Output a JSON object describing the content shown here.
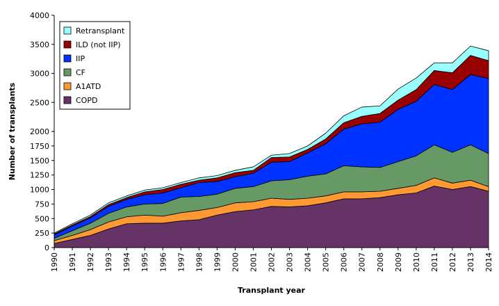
{
  "chart_data": {
    "type": "area",
    "stacked": true,
    "x": [
      "1990",
      "1991",
      "1992",
      "1993",
      "1994",
      "1995",
      "1996",
      "1997",
      "1998",
      "1999",
      "2000",
      "2001",
      "2002",
      "2003",
      "2004",
      "2005",
      "2006",
      "2007",
      "2008",
      "2009",
      "2010",
      "2011",
      "2012",
      "2013",
      "2014"
    ],
    "xlabel": "Transplant year",
    "ylabel": "Number of transplants",
    "ylim": [
      0,
      4000
    ],
    "yticks": [
      0,
      250,
      500,
      750,
      1000,
      1250,
      1500,
      1750,
      2000,
      2500,
      3000,
      3500,
      4000
    ],
    "grid": false,
    "legend_position": "top-left",
    "series": [
      {
        "name": "COPD",
        "color": "#663366",
        "values": [
          70,
          140,
          210,
          320,
          410,
          420,
          420,
          460,
          480,
          560,
          620,
          650,
          710,
          700,
          720,
          770,
          840,
          840,
          860,
          910,
          940,
          1060,
          1000,
          1050,
          970
        ]
      },
      {
        "name": "A1ATD",
        "color": "#ff9933",
        "values": [
          50,
          70,
          100,
          120,
          120,
          140,
          120,
          140,
          160,
          130,
          150,
          140,
          140,
          130,
          130,
          120,
          120,
          120,
          110,
          110,
          130,
          140,
          110,
          110,
          80
        ]
      },
      {
        "name": "CF",
        "color": "#669966",
        "values": [
          40,
          80,
          110,
          150,
          170,
          190,
          220,
          270,
          240,
          230,
          250,
          260,
          300,
          340,
          380,
          380,
          450,
          430,
          410,
          460,
          510,
          570,
          530,
          610,
          570
        ]
      },
      {
        "name": "IIP",
        "color": "#0033ff",
        "values": [
          60,
          80,
          90,
          120,
          130,
          160,
          180,
          160,
          240,
          220,
          200,
          230,
          320,
          310,
          400,
          520,
          630,
          740,
          780,
          900,
          940,
          1040,
          1080,
          1210,
          1290
        ]
      },
      {
        "name": "ILD (not IIP)",
        "color": "#990000",
        "values": [
          15,
          20,
          25,
          30,
          30,
          50,
          60,
          60,
          40,
          60,
          70,
          50,
          80,
          80,
          60,
          80,
          110,
          130,
          150,
          160,
          200,
          240,
          290,
          330,
          310
        ]
      },
      {
        "name": "Retransplant",
        "color": "#99ffff",
        "values": [
          15,
          20,
          25,
          30,
          30,
          30,
          30,
          30,
          40,
          40,
          40,
          60,
          40,
          60,
          60,
          100,
          120,
          160,
          130,
          190,
          200,
          130,
          170,
          160,
          170
        ]
      }
    ]
  }
}
